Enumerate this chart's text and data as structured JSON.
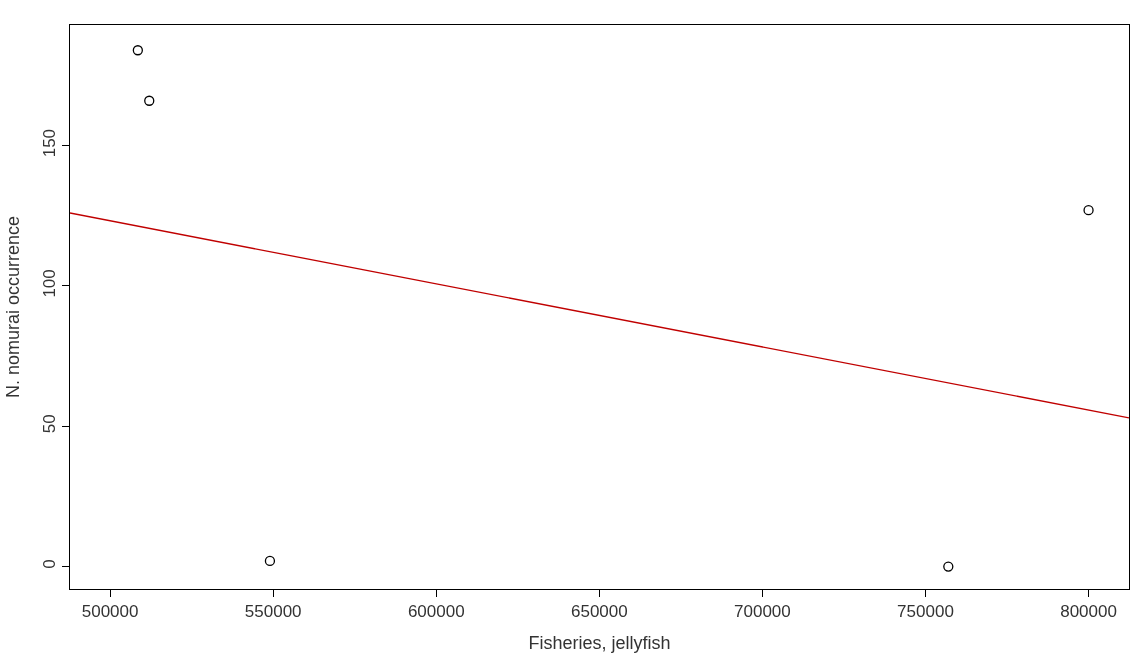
{
  "chart_data": {
    "type": "scatter",
    "xlabel": "Fisheries, jellyfish",
    "ylabel": "N. nomurai occurrence",
    "x": [
      508500,
      512000,
      549000,
      757000,
      800000
    ],
    "series": [
      {
        "color": "#000000",
        "marker": "circle",
        "values": [
          184,
          166,
          2,
          0,
          127
        ]
      },
      {
        "type": "line",
        "color": "#c00000",
        "line_style": "solid",
        "x": [
          487700,
          812400
        ],
        "values": [
          126,
          53
        ]
      }
    ],
    "xlim": [
      487700,
      812400
    ],
    "ylim": [
      -8,
      193
    ],
    "xticks": [
      500000,
      550000,
      600000,
      650000,
      700000,
      750000,
      800000
    ],
    "yticks": [
      0,
      50,
      100,
      150
    ]
  }
}
